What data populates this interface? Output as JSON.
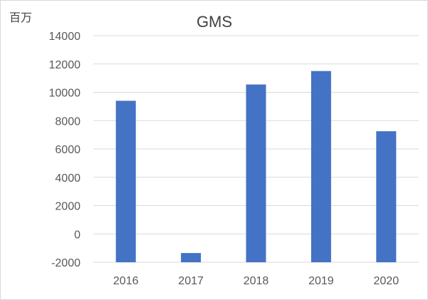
{
  "chart_data": {
    "type": "bar",
    "title": "GMS",
    "unit_label": "百万",
    "xlabel": "",
    "ylabel": "",
    "categories": [
      "2016",
      "2017",
      "2018",
      "2019",
      "2020"
    ],
    "values": [
      9400,
      -1350,
      10550,
      11500,
      7250
    ],
    "ylim": [
      -2000,
      14000
    ],
    "yticks": [
      -2000,
      0,
      2000,
      4000,
      6000,
      8000,
      10000,
      12000,
      14000
    ],
    "ytick_labels": [
      "-2000",
      "0",
      "2000",
      "4000",
      "6000",
      "8000",
      "10000",
      "12000",
      "14000"
    ],
    "grid": true,
    "legend": "none",
    "bar_color": "#4472c4",
    "grid_color": "#d9d9d9"
  }
}
